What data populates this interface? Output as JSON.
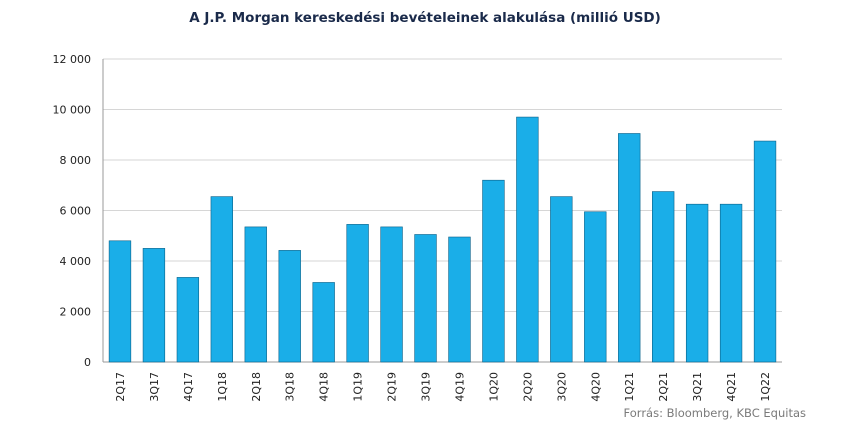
{
  "chart_data": {
    "type": "bar",
    "title": "A J.P. Morgan kereskedési bevételeinek  alakulása (millió USD)",
    "source": "Forrás: Bloomberg,  KBC Equitas",
    "categories": [
      "2Q17",
      "3Q17",
      "4Q17",
      "1Q18",
      "2Q18",
      "3Q18",
      "4Q18",
      "1Q19",
      "2Q19",
      "3Q19",
      "4Q19",
      "1Q20",
      "2Q20",
      "3Q20",
      "4Q20",
      "1Q21",
      "2Q21",
      "3Q21",
      "4Q21",
      "1Q22"
    ],
    "values": [
      4800,
      4500,
      3350,
      6550,
      5350,
      4420,
      3150,
      5450,
      5350,
      5050,
      4950,
      7200,
      9700,
      6550,
      5950,
      9050,
      6750,
      6250,
      6250,
      8750
    ],
    "ylim": [
      0,
      12000
    ],
    "yticks": [
      0,
      2000,
      4000,
      6000,
      8000,
      10000,
      12000
    ],
    "ytick_labels": [
      "0",
      "2 000",
      "4 000",
      "6 000",
      "8 000",
      "10 000",
      "12 000"
    ],
    "xlabel": "",
    "ylabel": "",
    "bar_color": "#1aaee8",
    "grid": true,
    "legend": "none"
  }
}
